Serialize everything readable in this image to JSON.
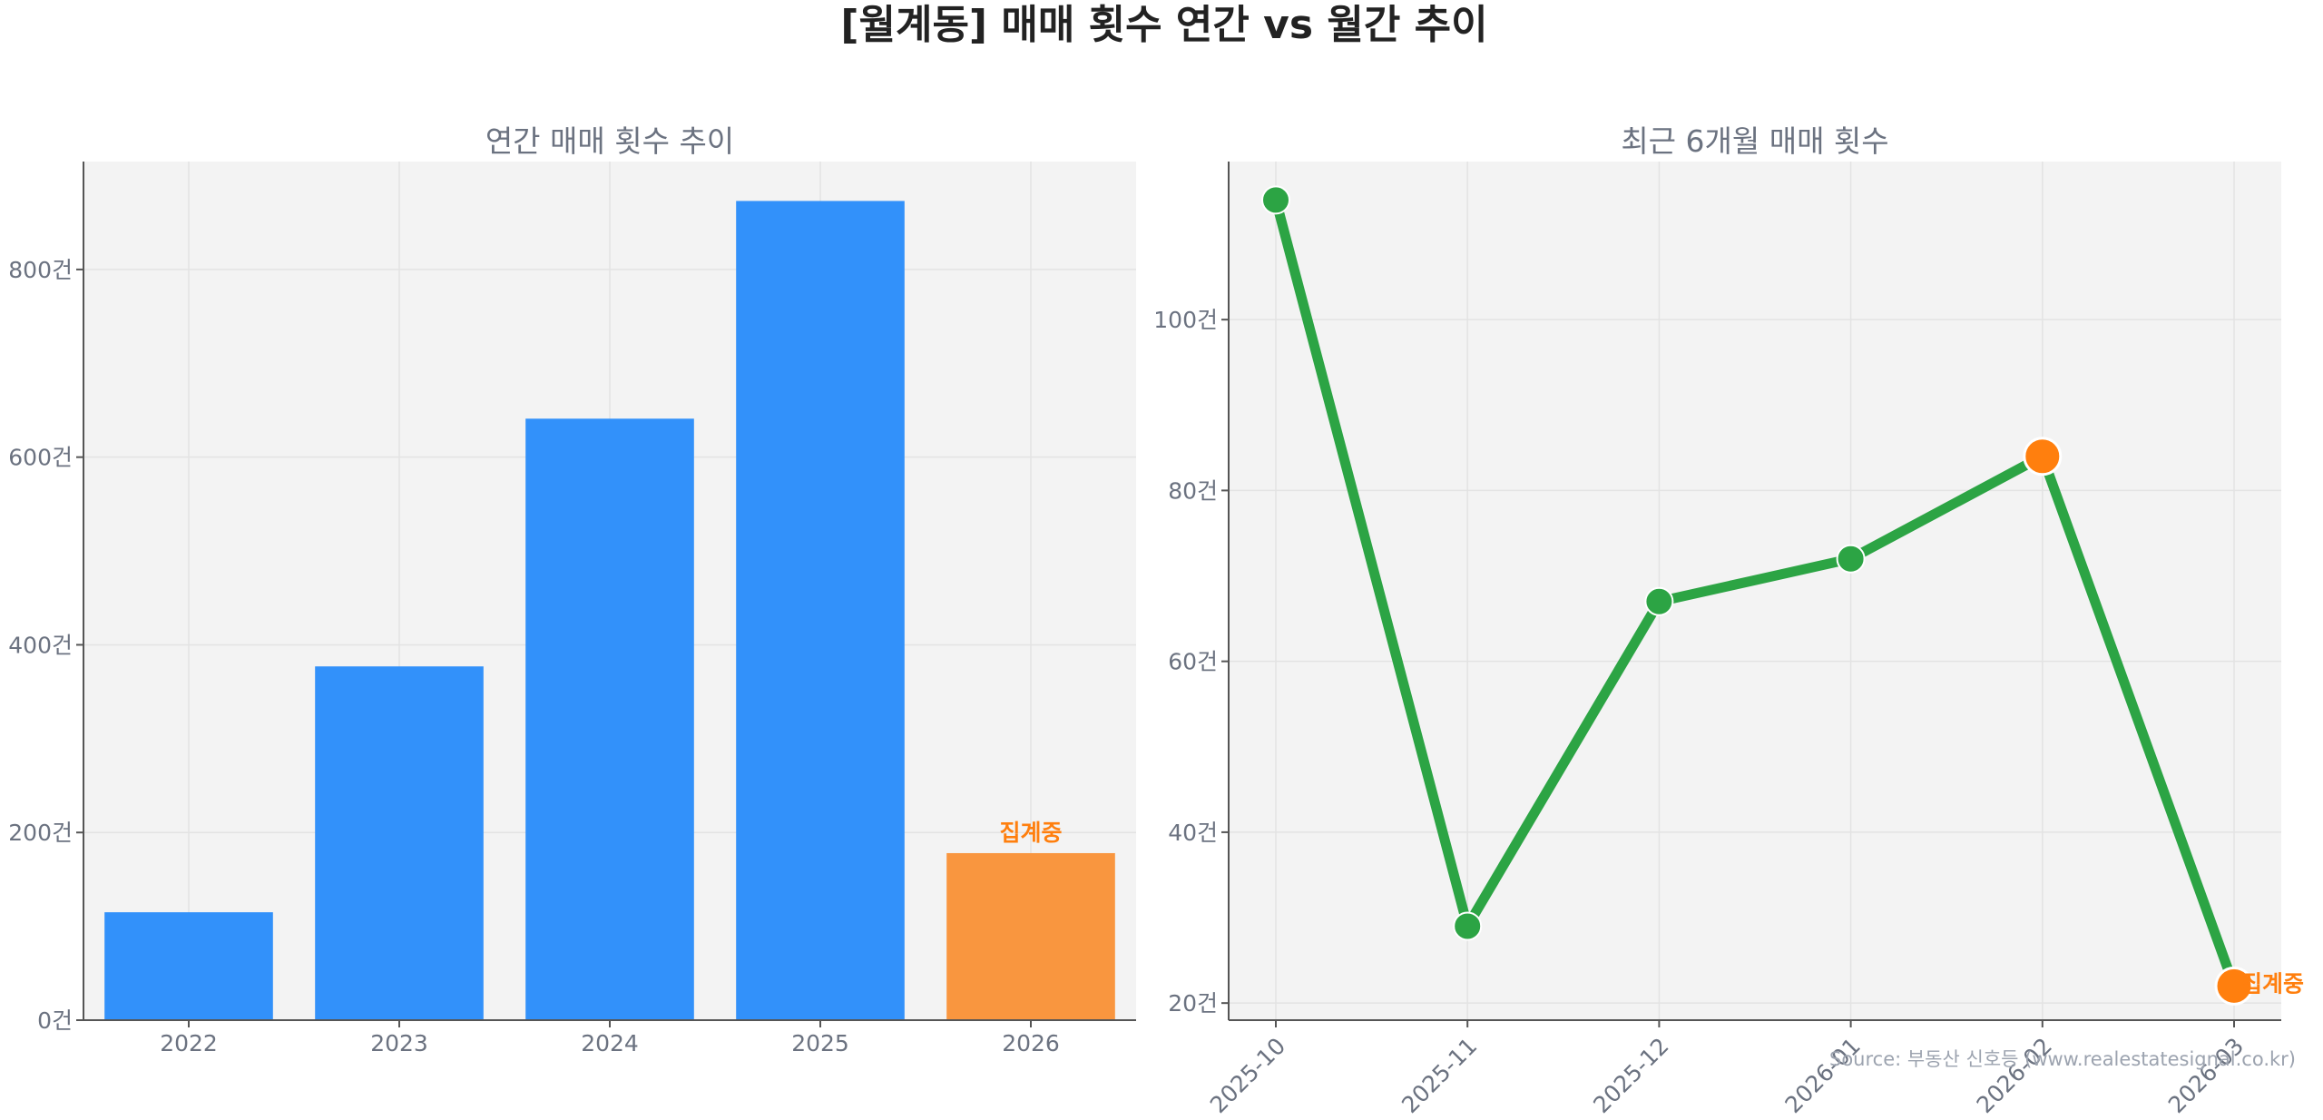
{
  "title": "[월계동] 매매 횟수 연간 vs 월간 추이",
  "source": "Source: 부동산 신호등 (www.realestatesignal.co.kr)",
  "colors": {
    "annual_bar": "#3291fa",
    "current_bar": "#f9963f",
    "line": "#2ca444",
    "current_point": "#ff7f0e",
    "panel_bg": "#f3f3f3",
    "grid": "#e3e3e3",
    "axis": "#555555"
  },
  "chart_data": [
    {
      "type": "bar",
      "title": "연간 매매 횟수 추이",
      "categories": [
        "2022",
        "2023",
        "2024",
        "2025",
        "2026"
      ],
      "values": [
        115,
        377,
        641,
        873,
        178
      ],
      "ylim": [
        0,
        915
      ],
      "yticks": [
        0,
        200,
        400,
        600,
        800
      ],
      "tick_suffix": "건",
      "highlight_index": 4,
      "highlight_label": "집계중",
      "grid": true
    },
    {
      "type": "line",
      "title": "최근 6개월 매매 횟수",
      "categories": [
        "2025-10",
        "2025-11",
        "2025-12",
        "2026-01",
        "2026-02",
        "2026-03"
      ],
      "values": [
        114,
        29,
        67,
        72,
        84,
        22
      ],
      "ylim": [
        18,
        118.5
      ],
      "yticks": [
        20,
        40,
        60,
        80,
        100
      ],
      "tick_suffix": "건",
      "highlight_points": [
        4,
        5
      ],
      "highlight_label": "집계중",
      "grid": true
    }
  ]
}
